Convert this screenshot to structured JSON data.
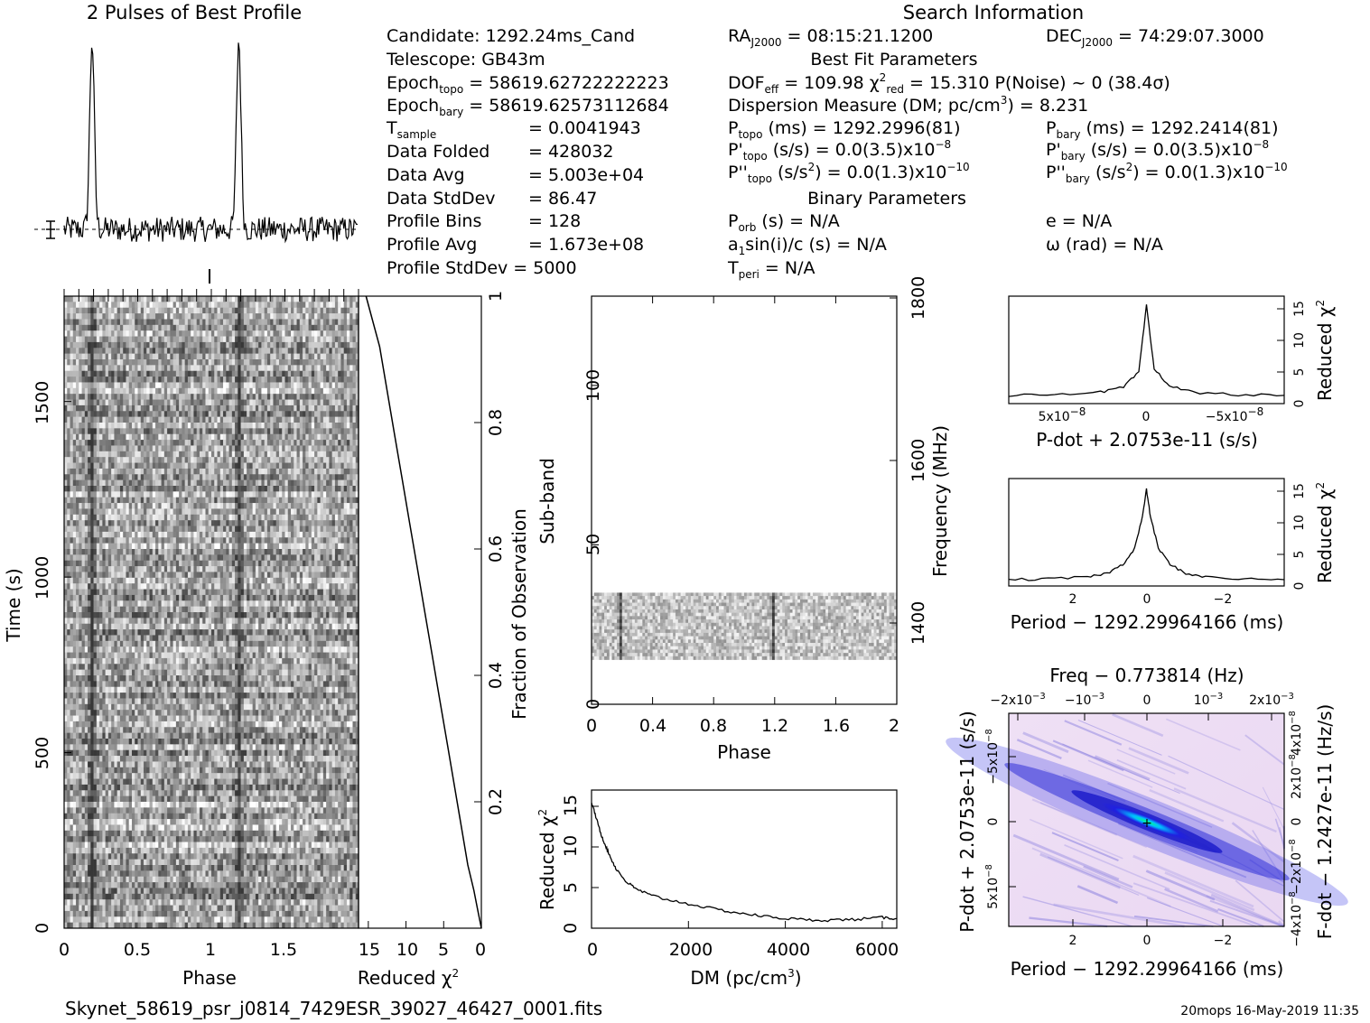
{
  "titles": {
    "profile": "2 Pulses of Best Profile",
    "search_info": "Search Information",
    "best_fit": "Best Fit Parameters",
    "binary": "Binary Parameters"
  },
  "info_left": [
    "Candidate:  1292.24ms_Cand",
    "Telescope:  GB43m",
    "Epoch_topo = 58619.62722222223",
    "Epoch_bary = 58619.62573112684",
    "T_sample    =  0.0041943",
    "Data Folded   =  428032",
    "Data Avg      =  5.003e+04",
    "Data StdDev   =  86.47",
    "Profile Bins  =  128",
    "Profile Avg   =  1.673e+08",
    "Profile StdDev =  5000"
  ],
  "info_mid": [
    "RA_J2000 = 08:15:21.1200",
    "DOF_eff = 109.98  χ²_red = 15.310  P(Noise) ~ 0   (38.4σ)",
    "Dispersion Measure (DM; pc/cm³) = 8.231",
    "P_topo (ms) =  1292.2996(81)",
    "P'_topo (s/s) = 0.0(3.5)x10⁻⁸",
    "P''_topo (s/s²) = 0.0(1.3)x10⁻¹⁰",
    "P_orb (s) = N/A",
    "a₁sin(i)/c (s) = N/A",
    "T_peri = N/A"
  ],
  "info_right": [
    "DEC_J2000 = 74:29:07.3000",
    "P_bary (ms) =  1292.2414(81)",
    "P'_bary (s/s) = 0.0(3.5)x10⁻⁸",
    "P''_bary (s/s²) = 0.0(1.3)x10⁻¹⁰",
    "e = N/A",
    "ω (rad) = N/A"
  ],
  "footer": {
    "filename": "Skynet_58619_psr_j0814_7429ESR_39027_46427_0001.fits",
    "stamp": "20mops 16-May-2019 11:35"
  },
  "chart_data": [
    {
      "id": "profile",
      "type": "line",
      "title": "2 Pulses of Best Profile",
      "x_range": [
        0,
        2
      ],
      "peaks_at_phase": [
        0.19,
        1.19
      ]
    },
    {
      "id": "time-phase",
      "type": "heatmap",
      "xlabel": "Phase",
      "ylabel": "Time (s)",
      "xlim": [
        0,
        2
      ],
      "ylim": [
        0,
        1800
      ],
      "x_ticks": [
        "0",
        "0.5",
        "1",
        "1.5"
      ],
      "y_ticks": [
        "0",
        "500",
        "1000",
        "1500"
      ],
      "pulse_phases": [
        0.19,
        1.19
      ]
    },
    {
      "id": "chi2-vs-fraction",
      "type": "line",
      "xlabel": "Reduced χ²",
      "ylabel": "Fraction of Observation",
      "xlim": [
        15,
        0
      ],
      "ylim": [
        0,
        1
      ],
      "x_ticks": [
        "15",
        "10",
        "5",
        "0"
      ],
      "y_ticks": [
        "0.2",
        "0.4",
        "0.6",
        "0.8",
        "1"
      ],
      "x": [
        0,
        0.5,
        1,
        1.8,
        2.5,
        3.5,
        4.5,
        5.5,
        6.5,
        7.5,
        8.5,
        9.5,
        10.5,
        11.5,
        12.5,
        13.5,
        15.3
      ],
      "y": [
        0,
        0.03,
        0.06,
        0.1,
        0.15,
        0.22,
        0.29,
        0.36,
        0.43,
        0.5,
        0.57,
        0.64,
        0.71,
        0.78,
        0.85,
        0.92,
        1.0
      ]
    },
    {
      "id": "subband-phase",
      "type": "heatmap",
      "xlabel": "Phase",
      "ylabel": "Sub-band",
      "ylabel_right": "Frequency (MHz)",
      "xlim": [
        0,
        2
      ],
      "ylim": [
        0,
        128
      ],
      "x_ticks": [
        "0",
        "0.4",
        "0.8",
        "1.2",
        "1.6",
        "2"
      ],
      "y_ticks": [
        "0",
        "50",
        "100"
      ],
      "freq_ticks": [
        "1400",
        "1600",
        "1800"
      ],
      "data_band": [
        14,
        35
      ],
      "pulse_phases": [
        0.19,
        1.19
      ]
    },
    {
      "id": "dm-chi2",
      "type": "line",
      "xlabel": "DM (pc/cm³)",
      "ylabel": "Reduced χ²",
      "xlim": [
        0,
        6300
      ],
      "ylim": [
        0,
        17
      ],
      "x_ticks": [
        "0",
        "2000",
        "4000",
        "6000"
      ],
      "y_ticks": [
        "0",
        "5",
        "10",
        "15"
      ],
      "x": [
        0,
        100,
        200,
        300,
        400,
        500,
        700,
        900,
        1200,
        1500,
        2000,
        2500,
        3000,
        3500,
        4000,
        4500,
        5000,
        5500,
        6000,
        6300
      ],
      "y": [
        15.5,
        13.5,
        11.5,
        10.0,
        8.6,
        7.4,
        5.8,
        4.9,
        4.1,
        3.6,
        3.0,
        2.4,
        1.9,
        1.5,
        1.2,
        1.0,
        1.0,
        1.1,
        1.3,
        1.2
      ]
    },
    {
      "id": "pdot-chi2",
      "type": "line",
      "xlabel": "P-dot + 2.0753e-11 (s/s)",
      "ylabel": "Reduced χ²",
      "xlim": [
        9e-08,
        -9e-08
      ],
      "ylim": [
        0,
        17
      ],
      "x_ticks": [
        "5x10⁻⁸",
        "0",
        "−5x10⁻⁸"
      ],
      "y_ticks": [
        "0",
        "5",
        "10",
        "15"
      ],
      "x": [
        9e-08,
        6e-08,
        3e-08,
        1.5e-08,
        5e-09,
        0,
        -5e-09,
        -1.5e-08,
        -3e-08,
        -6e-08,
        -9e-08
      ],
      "y": [
        1.3,
        1.5,
        1.8,
        2.6,
        5.0,
        15.5,
        5.5,
        2.8,
        1.8,
        1.4,
        1.3
      ]
    },
    {
      "id": "period-chi2",
      "type": "line",
      "xlabel": "Period − 1292.29964166 (ms)",
      "ylabel": "Reduced χ²",
      "xlim": [
        3.5,
        -3.5
      ],
      "ylim": [
        0,
        17
      ],
      "x_ticks": [
        "2",
        "0",
        "−2"
      ],
      "y_ticks": [
        "0",
        "5",
        "10",
        "15"
      ],
      "x": [
        3.5,
        2.5,
        1.5,
        1.0,
        0.6,
        0.3,
        0.1,
        0,
        -0.1,
        -0.3,
        -0.6,
        -1.0,
        -1.5,
        -2.5,
        -3.5
      ],
      "y": [
        1.0,
        1.1,
        1.4,
        2.0,
        3.4,
        6.0,
        11.0,
        15.3,
        11.0,
        6.0,
        3.4,
        2.0,
        1.4,
        1.1,
        1.0
      ]
    },
    {
      "id": "period-pdot",
      "type": "heatmap",
      "title": "Freq − 0.773814 (Hz)",
      "xlabel": "Period − 1292.29964166 (ms)",
      "ylabel": "P-dot + 2.0753e-11 (s/s)",
      "ylabel_right": "F-dot − 1.2427e-11 (Hz/s)",
      "xlim": [
        3.5,
        -3.5
      ],
      "x_ticks": [
        "2",
        "0",
        "−2"
      ],
      "top_ticks": [
        "−2x10⁻³",
        "−10⁻³",
        "0",
        "10⁻³",
        "2x10⁻³"
      ],
      "y_ticks": [
        "−5x10⁻⁸",
        "0",
        "5x10⁻⁸"
      ],
      "right_ticks": [
        "4x10⁻⁸",
        "2x10⁻⁸",
        "0",
        "−2x10⁻⁸",
        "−4x10⁻⁸"
      ]
    }
  ]
}
